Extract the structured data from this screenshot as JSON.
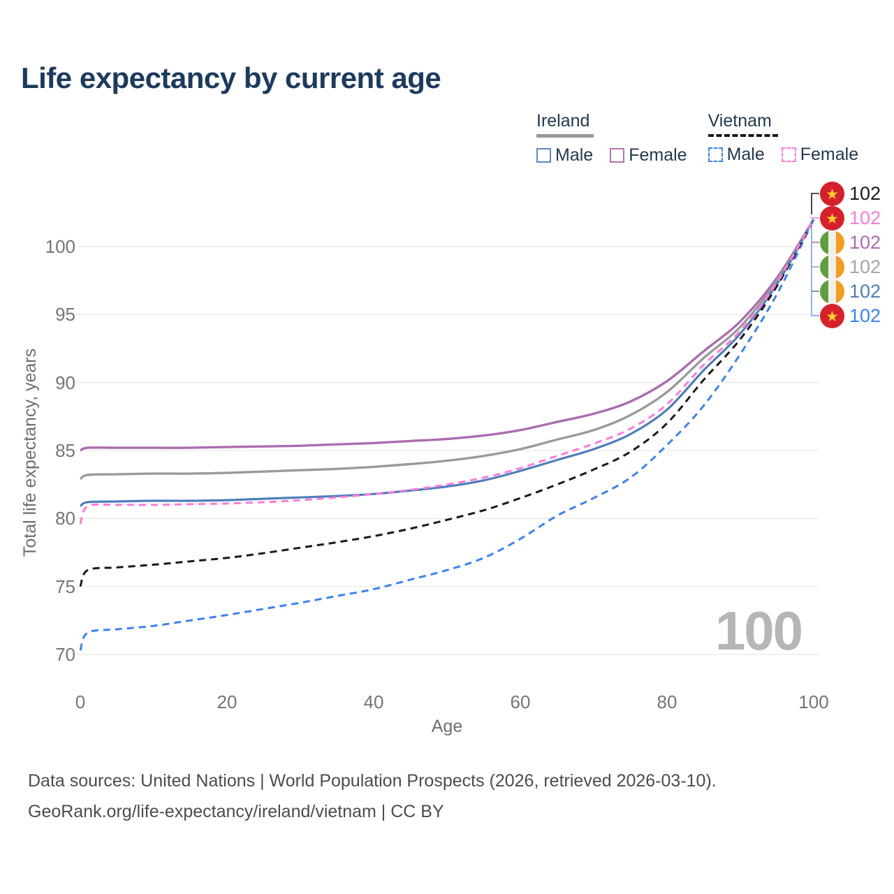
{
  "title": "Life expectancy by current age",
  "legend": {
    "groups": [
      {
        "name": "Ireland",
        "underline_style": "solid",
        "underline_color": "#999999",
        "underline_width": 82,
        "items": [
          {
            "label": "Male",
            "box_color": "#5b87c7",
            "box_style": "solid"
          },
          {
            "label": "Female",
            "box_color": "#b573ad",
            "box_style": "solid"
          }
        ]
      },
      {
        "name": "Vietnam",
        "underline_style": "dashed",
        "underline_color": "#1a1a1a",
        "underline_width": 100,
        "items": [
          {
            "label": "Male",
            "box_color": "#3b82f6",
            "box_style": "dashed"
          },
          {
            "label": "Female",
            "box_color": "#ff7ad9",
            "box_style": "dashed"
          }
        ]
      }
    ]
  },
  "chart_data": {
    "type": "line",
    "title": "Life expectancy by current age",
    "xlabel": "Age",
    "ylabel": "Total life expectancy, years",
    "x_ticks": [
      0,
      20,
      40,
      60,
      80,
      100
    ],
    "y_ticks": [
      70,
      75,
      80,
      85,
      90,
      95,
      100
    ],
    "xlim": [
      0,
      100
    ],
    "ylim": [
      68.5,
      103
    ],
    "grid": "horizontal",
    "gridline_color": "#ececec",
    "ages": [
      0,
      1,
      5,
      10,
      15,
      20,
      25,
      30,
      35,
      40,
      45,
      50,
      55,
      60,
      65,
      70,
      75,
      80,
      85,
      90,
      95,
      100
    ],
    "series": [
      {
        "id": "ireland-female",
        "country": "Ireland",
        "sex": "Female",
        "style": "solid",
        "color": "#ab6cae",
        "width": 3.4,
        "values": [
          85.0,
          85.2,
          85.2,
          85.2,
          85.2,
          85.25,
          85.3,
          85.35,
          85.45,
          85.55,
          85.7,
          85.85,
          86.1,
          86.5,
          87.1,
          87.7,
          88.6,
          90.1,
          92.3,
          94.5,
          97.7,
          102
        ]
      },
      {
        "id": "ireland-both",
        "country": "Ireland",
        "sex": "Both",
        "style": "solid",
        "color": "#9a9a9a",
        "width": 3.4,
        "values": [
          82.9,
          83.2,
          83.25,
          83.3,
          83.3,
          83.35,
          83.45,
          83.55,
          83.65,
          83.8,
          84.0,
          84.25,
          84.6,
          85.1,
          85.8,
          86.5,
          87.6,
          89.3,
          91.8,
          94.1,
          97.5,
          102
        ]
      },
      {
        "id": "ireland-male",
        "country": "Ireland",
        "sex": "Male",
        "style": "solid",
        "color": "#4d7eba",
        "width": 3.2,
        "values": [
          80.9,
          81.2,
          81.25,
          81.3,
          81.3,
          81.35,
          81.45,
          81.55,
          81.65,
          81.8,
          82.05,
          82.35,
          82.8,
          83.5,
          84.3,
          85.1,
          86.2,
          88.0,
          90.9,
          93.6,
          97.25,
          102
        ]
      },
      {
        "id": "vietnam-male",
        "country": "Vietnam",
        "sex": "Male",
        "style": "dashed",
        "color": "#3b82f6",
        "width": 3,
        "values": [
          70.3,
          71.6,
          71.85,
          72.1,
          72.5,
          72.9,
          73.35,
          73.8,
          74.3,
          74.8,
          75.5,
          76.2,
          77.1,
          78.5,
          80.2,
          81.5,
          83.0,
          85.4,
          88.3,
          92.1,
          96.5,
          102
        ]
      },
      {
        "id": "vietnam-both",
        "country": "Vietnam",
        "sex": "Both",
        "style": "dashed",
        "color": "#1a1a1a",
        "width": 3,
        "values": [
          75.0,
          76.2,
          76.4,
          76.6,
          76.85,
          77.1,
          77.45,
          77.85,
          78.25,
          78.7,
          79.25,
          79.9,
          80.6,
          81.5,
          82.5,
          83.6,
          84.9,
          87.0,
          90.2,
          93.2,
          97.1,
          102
        ]
      },
      {
        "id": "vietnam-female",
        "country": "Vietnam",
        "sex": "Female",
        "style": "dashed",
        "color": "#ff7ad9",
        "width": 3,
        "values": [
          79.6,
          80.9,
          81.0,
          81.0,
          81.05,
          81.1,
          81.2,
          81.35,
          81.55,
          81.8,
          82.1,
          82.5,
          83.0,
          83.7,
          84.6,
          85.5,
          86.6,
          88.4,
          91.3,
          93.8,
          97.35,
          102
        ]
      }
    ],
    "end_labels": [
      {
        "value": "102",
        "flag": "vietnam",
        "color": "#1a1a1a",
        "series": "vietnam-both"
      },
      {
        "value": "102",
        "flag": "vietnam",
        "color": "#ff7ad9",
        "series": "vietnam-female"
      },
      {
        "value": "102",
        "flag": "ireland",
        "color": "#ab6cae",
        "series": "ireland-female"
      },
      {
        "value": "102",
        "flag": "ireland",
        "color": "#a5a5a5",
        "series": "ireland-both"
      },
      {
        "value": "102",
        "flag": "ireland",
        "color": "#4d7eba",
        "series": "ireland-male"
      },
      {
        "value": "102",
        "flag": "vietnam",
        "color": "#3b82f6",
        "series": "vietnam-male"
      }
    ],
    "flag_colors": {
      "vietnam_red": "#d7202c",
      "vietnam_star": "#ffd02e",
      "ireland_green": "#5f9e3e",
      "ireland_white": "#f0efeb",
      "ireland_orange": "#f59c20"
    }
  },
  "watermark": "100",
  "footer": {
    "line1": "Data sources: United Nations | World Population Prospects (2026, retrieved 2026-03-10).",
    "line2": "GeoRank.org/life-expectancy/ireland/vietnam | CC BY"
  }
}
